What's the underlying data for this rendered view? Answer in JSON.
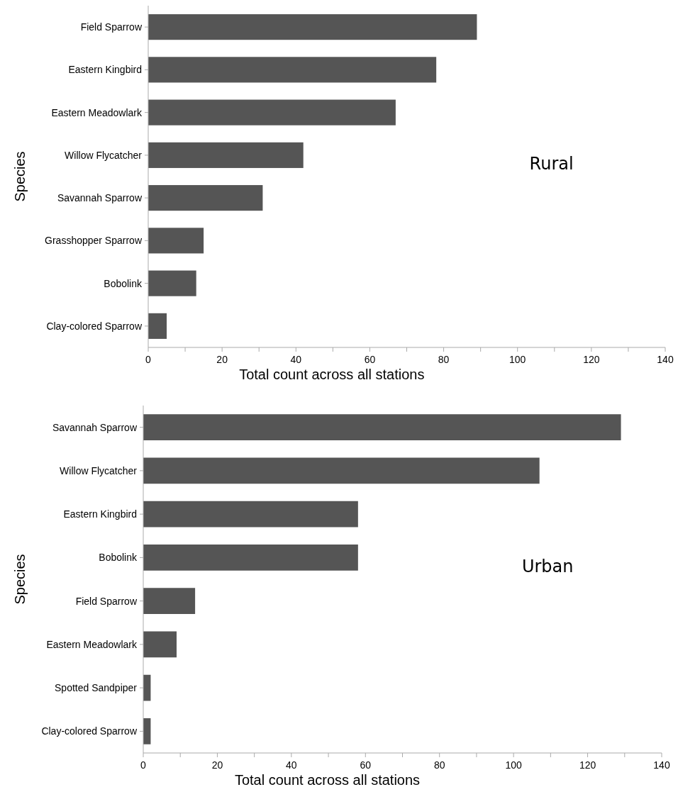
{
  "chart_data": [
    {
      "type": "bar",
      "orientation": "horizontal",
      "categories": [
        "Field Sparrow",
        "Eastern Kingbird",
        "Eastern Meadowlark",
        "Willow Flycatcher",
        "Savannah Sparrow",
        "Grasshopper Sparrow",
        "Bobolink",
        "Clay-colored Sparrow"
      ],
      "values": [
        89,
        78,
        67,
        42,
        31,
        15,
        13,
        5
      ],
      "color": "#555555",
      "xlabel": "Total count across all stations",
      "ylabel": "Species",
      "xlim": [
        0,
        140
      ],
      "xticks": [
        0,
        {
          "value": 10,
          "label": null
        },
        20,
        {
          "value": 30,
          "label": null
        },
        40,
        {
          "value": 50,
          "label": null
        },
        60,
        {
          "value": 70,
          "label": null
        },
        80,
        {
          "value": 90,
          "label": null
        },
        100,
        {
          "value": 110,
          "label": null
        },
        120,
        {
          "value": 130,
          "label": null
        },
        140
      ],
      "annotations": [
        "Rural"
      ]
    },
    {
      "type": "bar",
      "orientation": "horizontal",
      "categories": [
        "Savannah Sparrow",
        "Willow Flycatcher",
        "Eastern Kingbird",
        "Bobolink",
        "Field Sparrow",
        "Eastern Meadowlark",
        "Spotted Sandpiper",
        "Clay-colored Sparrow"
      ],
      "values": [
        129,
        107,
        58,
        58,
        14,
        9,
        2,
        2
      ],
      "color": "#555555",
      "xlabel": "Total count across all stations",
      "ylabel": "Species",
      "xlim": [
        0,
        140
      ],
      "xticks": [
        0,
        {
          "value": 10,
          "label": null
        },
        20,
        {
          "value": 30,
          "label": null
        },
        40,
        {
          "value": 50,
          "label": null
        },
        60,
        {
          "value": 70,
          "label": null
        },
        80,
        {
          "value": 90,
          "label": null
        },
        100,
        {
          "value": 110,
          "label": null
        },
        120,
        {
          "value": 130,
          "label": null
        },
        140
      ],
      "annotations": [
        "Urban"
      ]
    }
  ]
}
